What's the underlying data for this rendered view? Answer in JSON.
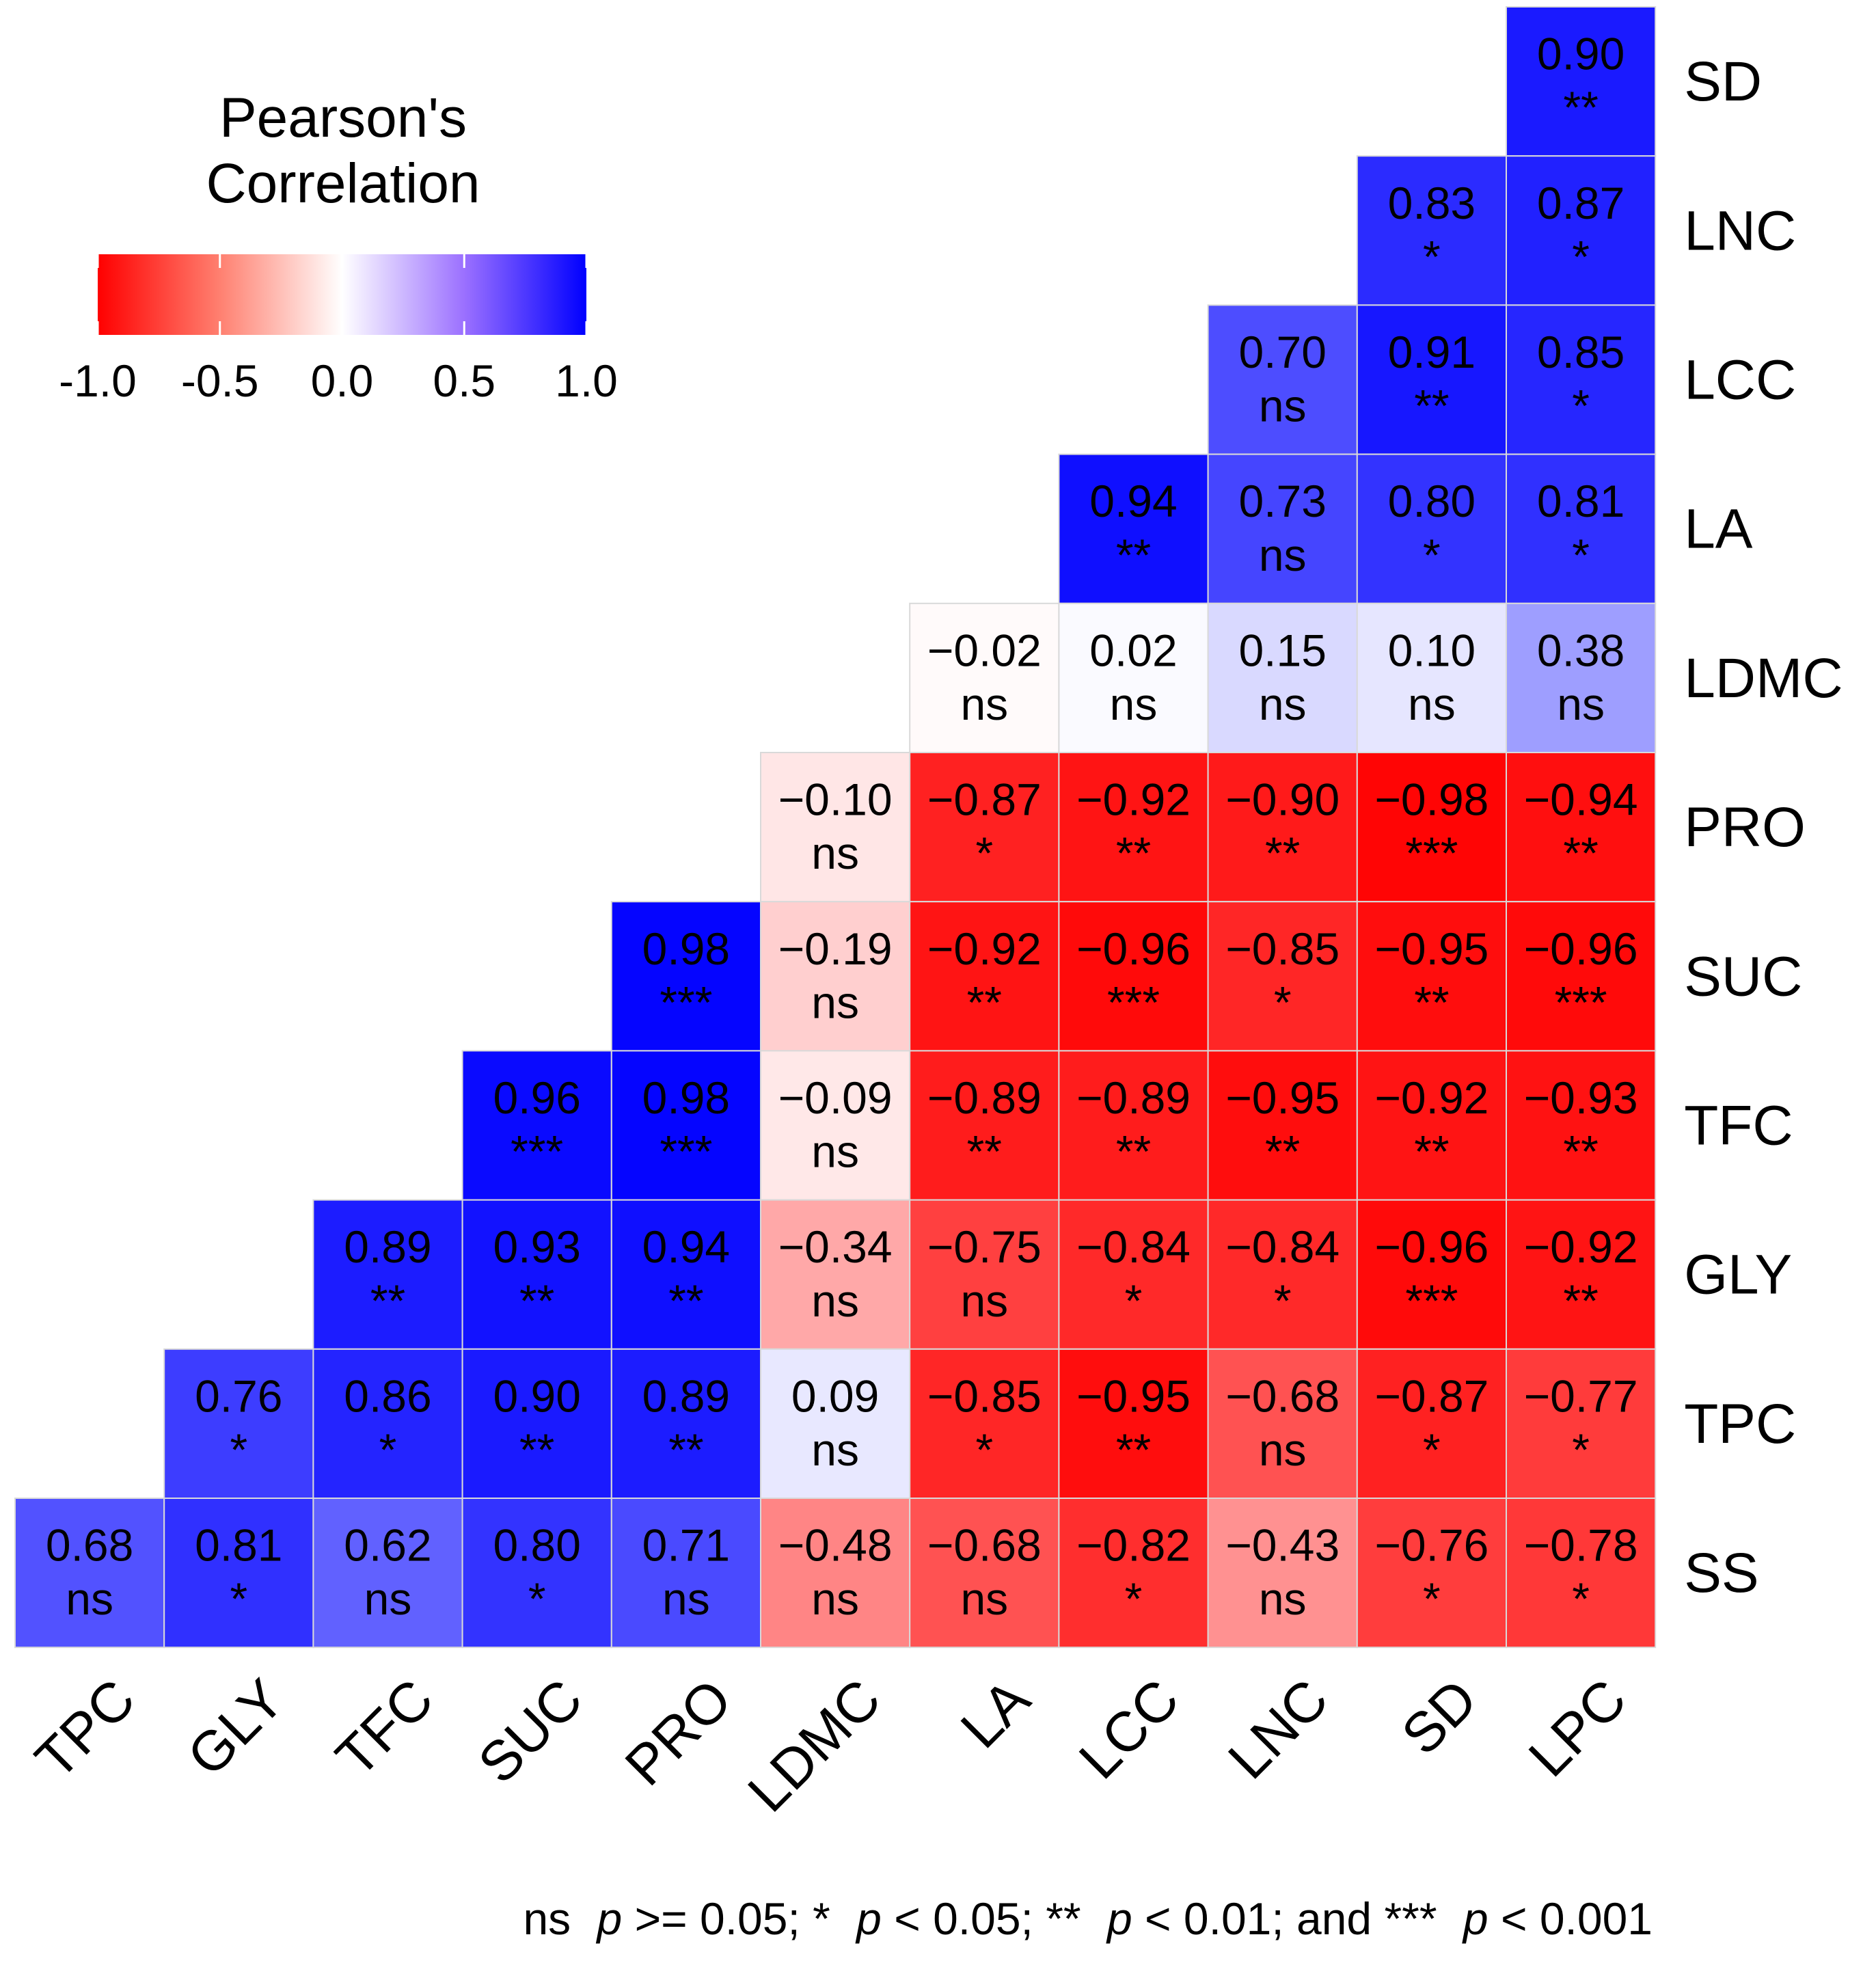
{
  "chart_data": {
    "type": "heatmap",
    "variables": [
      "TPC",
      "GLY",
      "TFC",
      "SUC",
      "PRO",
      "LDMC",
      "LA",
      "LCC",
      "LNC",
      "SD",
      "LPC"
    ],
    "x_labels": [
      "TPC",
      "GLY",
      "TFC",
      "SUC",
      "PRO",
      "LDMC",
      "LA",
      "LCC",
      "LNC",
      "SD",
      "LPC"
    ],
    "y_labels_top_to_bottom": [
      "SD",
      "LNC",
      "LCC",
      "LA",
      "LDMC",
      "PRO",
      "SUC",
      "TFC",
      "GLY",
      "TPC",
      "SS"
    ],
    "rows": [
      {
        "label": "SD",
        "values": [
          0.9
        ],
        "values_text": [
          "0.90"
        ],
        "sig": [
          "**"
        ]
      },
      {
        "label": "LNC",
        "values": [
          0.83,
          0.87
        ],
        "values_text": [
          "0.83",
          "0.87"
        ],
        "sig": [
          "*",
          "*"
        ]
      },
      {
        "label": "LCC",
        "values": [
          0.7,
          0.91,
          0.85
        ],
        "values_text": [
          "0.70",
          "0.91",
          "0.85"
        ],
        "sig": [
          "ns",
          "**",
          "*"
        ]
      },
      {
        "label": "LA",
        "values": [
          0.94,
          0.73,
          0.8,
          0.81
        ],
        "values_text": [
          "0.94",
          "0.73",
          "0.80",
          "0.81"
        ],
        "sig": [
          "**",
          "ns",
          "*",
          "*"
        ]
      },
      {
        "label": "LDMC",
        "values": [
          -0.02,
          0.02,
          0.15,
          0.1,
          0.38
        ],
        "values_text": [
          "−0.02",
          "0.02",
          "0.15",
          "0.10",
          "0.38"
        ],
        "sig": [
          "ns",
          "ns",
          "ns",
          "ns",
          "ns"
        ]
      },
      {
        "label": "PRO",
        "values": [
          -0.1,
          -0.87,
          -0.92,
          -0.9,
          -0.98,
          -0.94
        ],
        "values_text": [
          "−0.10",
          "−0.87",
          "−0.92",
          "−0.90",
          "−0.98",
          "−0.94"
        ],
        "sig": [
          "ns",
          "*",
          "**",
          "**",
          "***",
          "**"
        ]
      },
      {
        "label": "SUC",
        "values": [
          0.98,
          -0.19,
          -0.92,
          -0.96,
          -0.85,
          -0.95,
          -0.96
        ],
        "values_text": [
          "0.98",
          "−0.19",
          "−0.92",
          "−0.96",
          "−0.85",
          "−0.95",
          "−0.96"
        ],
        "sig": [
          "***",
          "ns",
          "**",
          "***",
          "*",
          "**",
          "***"
        ]
      },
      {
        "label": "TFC",
        "values": [
          0.96,
          0.98,
          -0.09,
          -0.89,
          -0.89,
          -0.95,
          -0.92,
          -0.93
        ],
        "values_text": [
          "0.96",
          "0.98",
          "−0.09",
          "−0.89",
          "−0.89",
          "−0.95",
          "−0.92",
          "−0.93"
        ],
        "sig": [
          "***",
          "***",
          "ns",
          "**",
          "**",
          "**",
          "**",
          "**"
        ]
      },
      {
        "label": "GLY",
        "values": [
          0.89,
          0.93,
          0.94,
          -0.34,
          -0.75,
          -0.84,
          -0.84,
          -0.96,
          -0.92
        ],
        "values_text": [
          "0.89",
          "0.93",
          "0.94",
          "−0.34",
          "−0.75",
          "−0.84",
          "−0.84",
          "−0.96",
          "−0.92"
        ],
        "sig": [
          "**",
          "**",
          "**",
          "ns",
          "ns",
          "*",
          "*",
          "***",
          "**"
        ]
      },
      {
        "label": "TPC",
        "values": [
          0.76,
          0.86,
          0.9,
          0.89,
          0.09,
          -0.85,
          -0.95,
          -0.68,
          -0.87,
          -0.77
        ],
        "values_text": [
          "0.76",
          "0.86",
          "0.90",
          "0.89",
          "0.09",
          "−0.85",
          "−0.95",
          "−0.68",
          "−0.87",
          "−0.77"
        ],
        "sig": [
          "*",
          "*",
          "**",
          "**",
          "ns",
          "*",
          "**",
          "ns",
          "*",
          "*"
        ]
      },
      {
        "label": "SS",
        "values": [
          0.68,
          0.81,
          0.62,
          0.8,
          0.71,
          -0.48,
          -0.68,
          -0.82,
          -0.43,
          -0.76,
          -0.78
        ],
        "values_text": [
          "0.68",
          "0.81",
          "0.62",
          "0.80",
          "0.71",
          "−0.48",
          "−0.68",
          "−0.82",
          "−0.43",
          "−0.76",
          "−0.78"
        ],
        "sig": [
          "ns",
          "*",
          "ns",
          "*",
          "ns",
          "ns",
          "ns",
          "*",
          "ns",
          "*",
          "*"
        ]
      }
    ],
    "legend": {
      "title_lines": [
        "Pearson's",
        "Correlation"
      ],
      "ticks": [
        "-1.0",
        "-0.5",
        "0.0",
        "0.5",
        "1.0"
      ],
      "range": [
        -1.0,
        1.0
      ],
      "placement": "top-left"
    },
    "colors": {
      "negative": "#FF0000",
      "zero": "#FFFFFF",
      "positive": "#0000FF",
      "cell_border": "#D9D9D9"
    },
    "caption": "ns p>= 0.05; * p< 0.05; ** p< 0.01; and *** p< 0.001",
    "caption_parts": {
      "ns": "ns",
      "p": "p",
      "t1": ">= 0.05; *",
      "t2": "< 0.05; **",
      "t3": "< 0.01; and ***",
      "t4": "< 0.001"
    }
  }
}
